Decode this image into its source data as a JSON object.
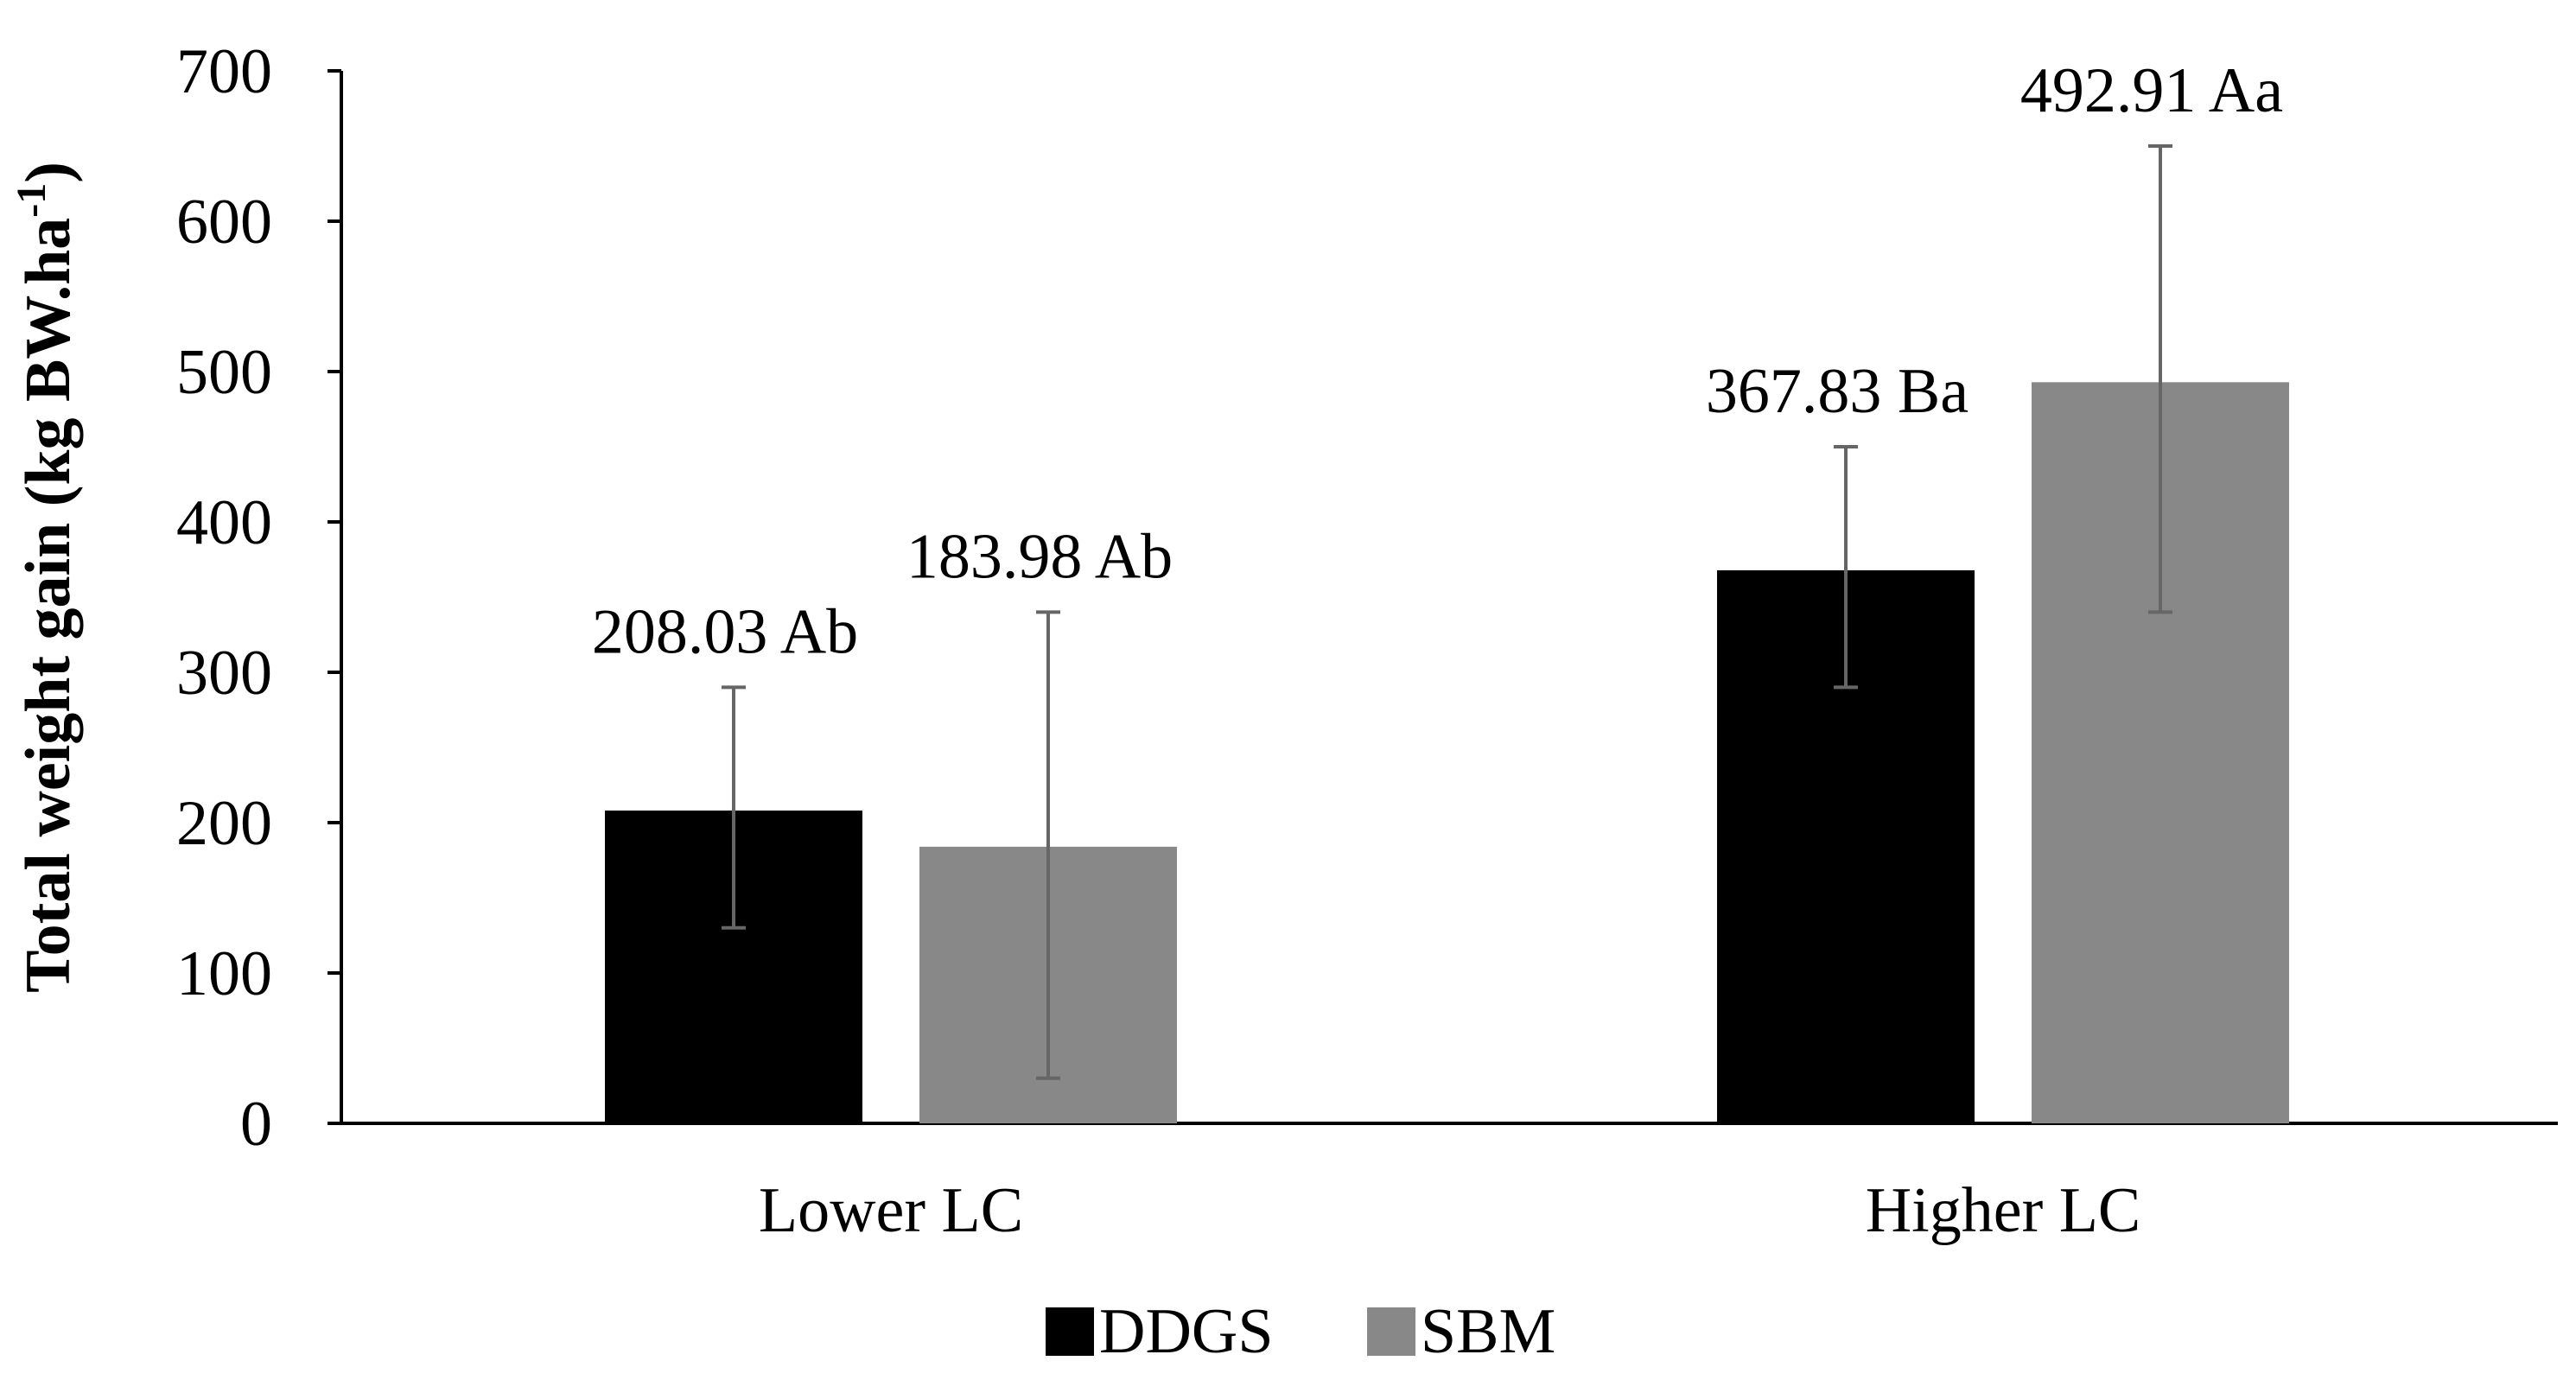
{
  "chart_data": {
    "type": "bar",
    "title": "",
    "xlabel": "",
    "ylabel": "Total weight gain (kg BW.ha",
    "ylabel_superscript": "-1",
    "ylabel_suffix": ")",
    "categories": [
      "Lower LC",
      "Higher LC"
    ],
    "ylim": [
      0,
      700
    ],
    "yticks": [
      "0",
      "100",
      "200",
      "300",
      "400",
      "500",
      "600",
      "700"
    ],
    "grid": false,
    "legend_position": "bottom-center",
    "series": [
      {
        "name": "DDGS",
        "color": "#000000",
        "values": [
          208.03,
          367.83
        ],
        "error_low": [
          130,
          290
        ],
        "error_high": [
          290,
          450
        ],
        "labels": [
          "208.03 Ab",
          "367.83 Ba"
        ]
      },
      {
        "name": "SBM",
        "color": "#888888",
        "values": [
          183.98,
          492.91
        ],
        "error_low": [
          30,
          340
        ],
        "error_high": [
          340,
          650
        ],
        "labels": [
          "183.98 Ab",
          "492.91 Aa"
        ]
      }
    ],
    "error_bar_color": "#666666"
  }
}
